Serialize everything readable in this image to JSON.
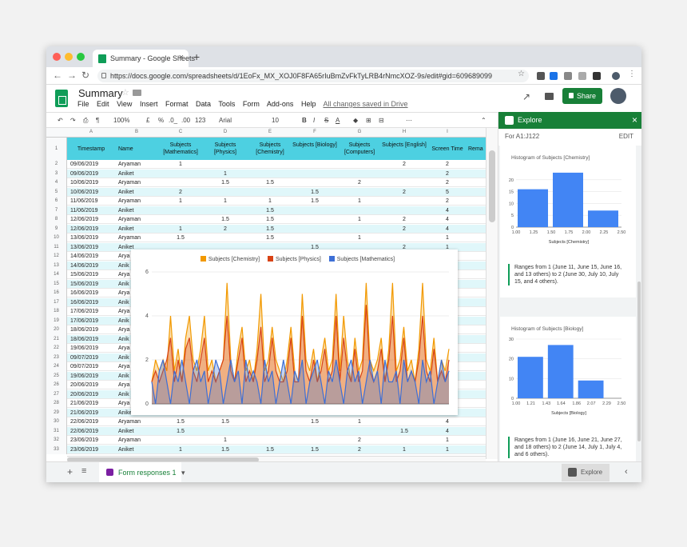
{
  "browser": {
    "tab_title": "Summary - Google Sheets",
    "url": "https://docs.google.com/spreadsheets/d/1EoFx_MX_XOJ0F8FA65rIuBmZvFkTyLRB4rNmcXOZ-9s/edit#gid=609689099"
  },
  "app": {
    "title": "Summary",
    "menu": [
      "File",
      "Edit",
      "View",
      "Insert",
      "Format",
      "Data",
      "Tools",
      "Form",
      "Add-ons",
      "Help"
    ],
    "saved_status": "All changes saved in Drive",
    "share_label": "Share"
  },
  "toolbar": {
    "zoom": "100%",
    "currency": "£",
    "percent": "%",
    "dec_less": ".0_",
    "dec_more": ".00",
    "format": "123",
    "font": "Arial",
    "font_size": "10"
  },
  "columns": [
    "A",
    "B",
    "C",
    "D",
    "E",
    "F",
    "G",
    "H",
    "I"
  ],
  "headers": [
    "Timestamp",
    "Name",
    "Subjects [Mathematics]",
    "Subjects [Physics]",
    "Subjects [Chemistry]",
    "Subjects [Biology]",
    "Subjects [Computers]",
    "Subjects [English]",
    "Screen Time",
    "Rema"
  ],
  "rows": [
    [
      "09/06/2019",
      "Aryaman",
      "1",
      "",
      "",
      "",
      "",
      "2",
      "2"
    ],
    [
      "09/06/2019",
      "Aniket",
      "",
      "1",
      "",
      "",
      "",
      "",
      "2"
    ],
    [
      "10/06/2019",
      "Aryaman",
      "",
      "1.5",
      "1.5",
      "",
      "2",
      "",
      "2"
    ],
    [
      "10/06/2019",
      "Aniket",
      "2",
      "",
      "",
      "1.5",
      "",
      "2",
      "5"
    ],
    [
      "11/06/2019",
      "Aryaman",
      "1",
      "1",
      "1",
      "1.5",
      "1",
      "",
      "2"
    ],
    [
      "11/06/2019",
      "Aniket",
      "",
      "",
      "1.5",
      "",
      "",
      "",
      "4"
    ],
    [
      "12/06/2019",
      "Aryaman",
      "",
      "1.5",
      "1.5",
      "",
      "1",
      "2",
      "4"
    ],
    [
      "12/06/2019",
      "Aniket",
      "1",
      "2",
      "1.5",
      "",
      "",
      "2",
      "4"
    ],
    [
      "13/06/2019",
      "Aryaman",
      "1.5",
      "",
      "1.5",
      "",
      "1",
      "",
      "1"
    ],
    [
      "13/06/2019",
      "Aniket",
      "",
      "",
      "",
      "1.5",
      "",
      "2",
      "1"
    ],
    [
      "14/06/2019",
      "Arya",
      "",
      "",
      "",
      "",
      "",
      "",
      ""
    ],
    [
      "14/06/2019",
      "Anik",
      "",
      "",
      "",
      "",
      "",
      "",
      ""
    ],
    [
      "15/06/2019",
      "Arya",
      "",
      "",
      "",
      "",
      "",
      "",
      ""
    ],
    [
      "15/06/2019",
      "Anik",
      "",
      "",
      "",
      "",
      "",
      "",
      ""
    ],
    [
      "16/06/2019",
      "Arya",
      "",
      "",
      "",
      "",
      "",
      "",
      ""
    ],
    [
      "16/06/2019",
      "Anik",
      "",
      "",
      "",
      "",
      "",
      "",
      ""
    ],
    [
      "17/06/2019",
      "Arya",
      "",
      "",
      "",
      "",
      "",
      "",
      ""
    ],
    [
      "17/06/2019",
      "Anik",
      "",
      "",
      "",
      "",
      "",
      "",
      ""
    ],
    [
      "18/06/2019",
      "Arya",
      "",
      "",
      "",
      "",
      "",
      "",
      ""
    ],
    [
      "18/06/2019",
      "Anik",
      "",
      "",
      "",
      "",
      "",
      "",
      ""
    ],
    [
      "19/06/2019",
      "Arya",
      "",
      "",
      "",
      "",
      "",
      "",
      ""
    ],
    [
      "09/07/2019",
      "Anik",
      "",
      "",
      "",
      "",
      "",
      "",
      ""
    ],
    [
      "09/07/2019",
      "Arya",
      "",
      "",
      "",
      "",
      "",
      "",
      ""
    ],
    [
      "19/06/2019",
      "Anik",
      "",
      "",
      "",
      "",
      "",
      "",
      ""
    ],
    [
      "20/06/2019",
      "Arya",
      "",
      "",
      "",
      "",
      "",
      "",
      ""
    ],
    [
      "20/06/2019",
      "Anik",
      "",
      "",
      "",
      "",
      "",
      "",
      ""
    ],
    [
      "21/06/2019",
      "Arya",
      "",
      "",
      "",
      "",
      "",
      "",
      ""
    ],
    [
      "21/06/2019",
      "Aniket",
      "",
      "1",
      "",
      "1",
      "1",
      "2",
      "4"
    ],
    [
      "22/06/2019",
      "Aryaman",
      "1.5",
      "1.5",
      "",
      "1.5",
      "1",
      "",
      "4"
    ],
    [
      "22/06/2019",
      "Aniket",
      "1.5",
      "",
      "",
      "",
      "",
      "1.5",
      "4"
    ],
    [
      "23/06/2019",
      "Aryaman",
      "",
      "1",
      "",
      "",
      "2",
      "",
      "1"
    ],
    [
      "23/06/2019",
      "Aniket",
      "1",
      "1.5",
      "1.5",
      "1.5",
      "2",
      "1",
      "1"
    ]
  ],
  "embedded_chart": {
    "legend": [
      "Subjects [Chemistry]",
      "Subjects [Physics]",
      "Subjects [Mathematics]"
    ],
    "colors": [
      "#f29900",
      "#d84315",
      "#3d6fd6"
    ],
    "y_ticks": [
      "0",
      "2",
      "4",
      "6"
    ],
    "ylim": [
      0,
      6
    ]
  },
  "chart_data": [
    {
      "type": "area",
      "series": [
        {
          "name": "Subjects [Chemistry]",
          "values": [
            1,
            2,
            1.5,
            2,
            1.5,
            4,
            1.5,
            2.5,
            1,
            3,
            4,
            2,
            1.5,
            2.5,
            4,
            1.5,
            2,
            1,
            1.5,
            2,
            5.5,
            2,
            1,
            2.5,
            3.5,
            1.5,
            2,
            1,
            2.5,
            5,
            1.5,
            2,
            3.5,
            2,
            1.5,
            1,
            2,
            3.5,
            1.5,
            1,
            5,
            2,
            1.5,
            2.5,
            1,
            2,
            3,
            1.5,
            2,
            5,
            1.5,
            4,
            2,
            1,
            3,
            1.5,
            2,
            5.5,
            2,
            1.5,
            2,
            3,
            1,
            2.5,
            5.5,
            1.5,
            2,
            3.5,
            1.5,
            2,
            1,
            2.5,
            5.5,
            2,
            1.5,
            3,
            1,
            2,
            1.5,
            2.5
          ]
        },
        {
          "name": "Subjects [Physics]",
          "values": [
            1,
            1.5,
            1,
            1.5,
            2,
            3,
            1,
            2,
            1,
            2.5,
            3,
            1.5,
            1,
            2,
            3,
            1,
            1.5,
            1,
            1.5,
            2,
            4,
            1.5,
            1,
            2,
            3,
            1,
            1.5,
            1,
            2,
            3.5,
            1,
            1.5,
            3,
            1.5,
            1,
            1,
            1.5,
            3,
            1,
            1,
            4,
            1.5,
            1,
            2,
            1,
            1.5,
            2.5,
            1,
            1.5,
            4,
            1,
            3,
            1.5,
            1,
            2.5,
            1,
            1.5,
            4.5,
            1.5,
            1,
            1.5,
            2.5,
            1,
            2,
            4,
            1,
            1.5,
            3,
            1,
            1.5,
            1,
            2,
            4,
            1.5,
            1,
            2.5,
            1,
            1.5,
            1,
            2
          ]
        },
        {
          "name": "Subjects [Mathematics]",
          "values": [
            1,
            0,
            1.5,
            2,
            1,
            0,
            1.5,
            1,
            2,
            1,
            0,
            1.5,
            2,
            1,
            1.5,
            0,
            1,
            2,
            1.5,
            0,
            1,
            2,
            1,
            1.5,
            0,
            2,
            1,
            1.5,
            1,
            0,
            2,
            1,
            1.5,
            0,
            1,
            2,
            1,
            0,
            1.5,
            1,
            2,
            0,
            1,
            1.5,
            2,
            1,
            0,
            1.5,
            1,
            2,
            1,
            0,
            1.5,
            2,
            1,
            1.5,
            0,
            1,
            2,
            1,
            1.5,
            0,
            2,
            1,
            1,
            1.5,
            0,
            2,
            1,
            1.5,
            1,
            0,
            2,
            1,
            1.5,
            0,
            1,
            2,
            1,
            1.5
          ]
        }
      ],
      "ylim": [
        0,
        6
      ],
      "legend_position": "top"
    },
    {
      "type": "bar",
      "title": "Histogram of Subjects [Chemistry]",
      "xlabel": "Subjects [Chemistry]",
      "x_ticks": [
        "1.00",
        "1.25",
        "1.50",
        "1.75",
        "2.00",
        "2.25",
        "2.50"
      ],
      "y_ticks": [
        "0",
        "5",
        "10",
        "15",
        "20"
      ],
      "bins": [
        1.0,
        1.5,
        2.0
      ],
      "values": [
        16,
        23,
        7
      ],
      "ylim": [
        0,
        25
      ]
    },
    {
      "type": "bar",
      "title": "Histogram of Subjects [Biology]",
      "xlabel": "Subjects [Biology]",
      "x_ticks": [
        "1.00",
        "1.21",
        "1.43",
        "1.64",
        "1.86",
        "2.07",
        "2.29",
        "2.50"
      ],
      "y_ticks": [
        "0",
        "10",
        "20",
        "30"
      ],
      "bins": [
        1.0,
        1.43,
        1.86
      ],
      "values": [
        21,
        27,
        9
      ],
      "ylim": [
        0,
        30
      ]
    }
  ],
  "panel": {
    "title": "Explore",
    "range": "For A1:J122",
    "edit": "EDIT",
    "card1_desc": "Ranges from 1 (June 11, June 15, June 16, and 13 others) to 2 (June 30, July 10, July 15, and 4 others).",
    "card2_desc": "Ranges from 1 (June 16, June 21, June 27, and 18 others) to 2 (June 14, July 1, July 4, and 6 others)."
  },
  "bottom": {
    "sheet_tab": "Form responses 1",
    "explore_label": "Explore"
  }
}
